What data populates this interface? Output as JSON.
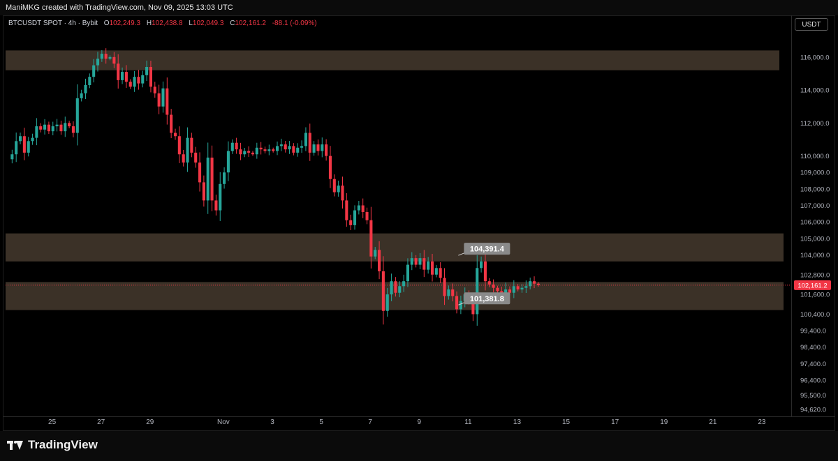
{
  "header": {
    "credit": "ManiMKG created with TradingView.com, Nov 09, 2025 13:03 UTC"
  },
  "legend": {
    "symbol": "BTCUSDT SPOT · 4h · Bybit",
    "open_label": "O",
    "open": "102,249.3",
    "high_label": "H",
    "high": "102,438.8",
    "low_label": "L",
    "low": "102,049.3",
    "close_label": "C",
    "close": "102,161.2",
    "change": "-88.1 (-0.09%)"
  },
  "currency_button": "USDT",
  "footer": {
    "brand": "TradingView"
  },
  "colors": {
    "up": "#26a69a",
    "down": "#f23645",
    "zone": "#3b3127",
    "background": "#000000",
    "price_tag": "#f23645",
    "callout": "#8a8a8a"
  },
  "chart_data": {
    "type": "candlestick",
    "title": "",
    "xlabel": "",
    "ylabel": "",
    "ylim": [
      94200,
      117600
    ],
    "y_ticks": [
      "116,000.0",
      "114,000.0",
      "112,000.0",
      "110,000.0",
      "109,000.0",
      "108,000.0",
      "107,000.0",
      "106,000.0",
      "105,000.0",
      "104,000.0",
      "102,800.0",
      "101,600.0",
      "100,400.0",
      "99,400.0",
      "98,400.0",
      "97,400.0",
      "96,400.0",
      "95,500.0",
      "94,620.0"
    ],
    "y_tick_values": [
      116000,
      114000,
      112000,
      110000,
      109000,
      108000,
      107000,
      106000,
      105000,
      104000,
      102800,
      101600,
      100400,
      99400,
      98400,
      97400,
      96400,
      95500,
      94620
    ],
    "x_ticks": [
      "25",
      "27",
      "29",
      "Nov",
      "3",
      "5",
      "7",
      "9",
      "11",
      "13",
      "15",
      "17",
      "19",
      "21",
      "23"
    ],
    "x_tick_days": [
      -7,
      -5,
      -3,
      0,
      2,
      4,
      6,
      8,
      10,
      12,
      14,
      16,
      18,
      20,
      22
    ],
    "x_range_days": [
      -8.9,
      23.2
    ],
    "zones": [
      {
        "from": 115200,
        "to": 116400
      },
      {
        "from": 103600,
        "to": 105300
      },
      {
        "from": 100650,
        "to": 102350
      }
    ],
    "current_price": {
      "value": 102161.2,
      "label": "102,161.2"
    },
    "callouts": [
      {
        "day": 9.6,
        "value": 104391.4,
        "label": "104,391.4"
      },
      {
        "day": 9.6,
        "value": 101381.8,
        "label": "101,381.8"
      }
    ],
    "candle_closes": [
      109800,
      110100,
      110900,
      111200,
      110200,
      110900,
      111100,
      111800,
      111600,
      111900,
      111500,
      111800,
      111900,
      111500,
      112000,
      111800,
      111400,
      113500,
      113800,
      114300,
      114800,
      115500,
      115900,
      116200,
      115900,
      116000,
      115600,
      114600,
      115100,
      114500,
      114200,
      114800,
      114400,
      114900,
      115400,
      114200,
      113800,
      113000,
      114100,
      112500,
      111400,
      111200,
      110100,
      109600,
      111100,
      110200,
      109600,
      108400,
      107300,
      109900,
      107300,
      106700,
      108300,
      109000,
      110300,
      110800,
      110400,
      110100,
      110300,
      110200,
      110100,
      110500,
      110400,
      110300,
      110400,
      110300,
      110600,
      110700,
      110400,
      110600,
      110200,
      110500,
      110600,
      111400,
      110200,
      110700,
      110300,
      110700,
      110000,
      108600,
      107800,
      108200,
      107300,
      106100,
      105800,
      106700,
      107000,
      106600,
      106100,
      103900,
      104300,
      103000,
      100600,
      101600,
      102400,
      101700,
      102100,
      102400,
      103400,
      103800,
      103400,
      103800,
      103100,
      103600,
      102800,
      103200,
      102600,
      101500,
      101900,
      101500,
      100700,
      101200,
      101600,
      101200,
      100400,
      103200,
      103600,
      102400,
      102200,
      102000,
      101800,
      101500,
      101900,
      101700,
      102100,
      101900,
      102000,
      102100,
      102400,
      102250,
      102161
    ],
    "candle_start_day": -8.8,
    "candle_step_day": 0.16667
  }
}
